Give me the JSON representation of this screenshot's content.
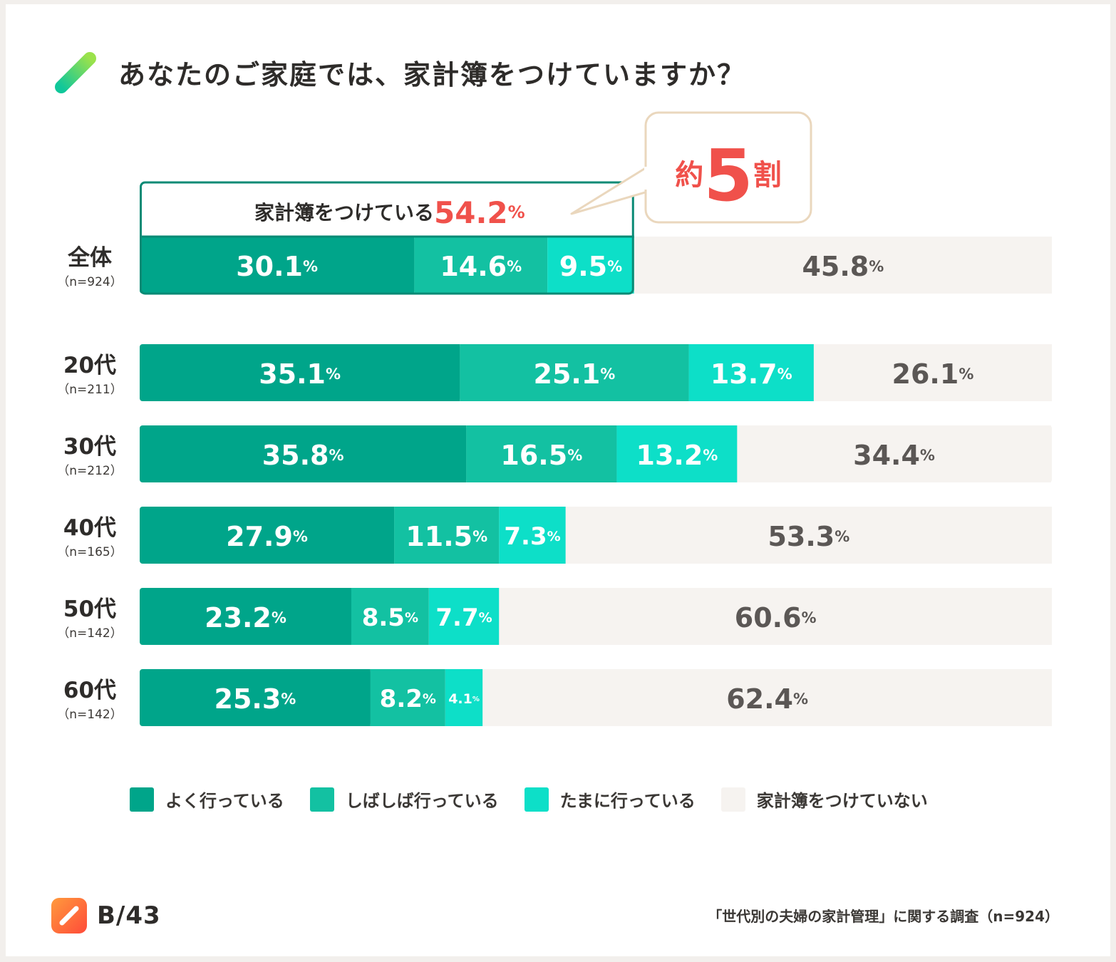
{
  "title": "あなたのご家庭では、家計簿をつけていますか？",
  "colors": {
    "often": "#00a58a",
    "sometimes": "#13c1a2",
    "occasionally": "#0ddfc8",
    "none": "#f6f3f0",
    "accent_red": "#f0514b",
    "highlight_border": "#098a75",
    "callout_border": "#ead7bd"
  },
  "chart_data": {
    "type": "bar",
    "orientation": "horizontal",
    "stacked": true,
    "unit": "%",
    "categories": [
      {
        "label": "全体",
        "n": "（n=924）"
      },
      {
        "label": "20代",
        "n": "（n=211）"
      },
      {
        "label": "30代",
        "n": "（n=212）"
      },
      {
        "label": "40代",
        "n": "（n=165）"
      },
      {
        "label": "50代",
        "n": "（n=142）"
      },
      {
        "label": "60代",
        "n": "（n=142）"
      }
    ],
    "series": [
      {
        "name": "よく行っている",
        "color": "#00a58a",
        "values": [
          30.1,
          35.1,
          35.8,
          27.9,
          23.2,
          25.3
        ]
      },
      {
        "name": "しばしば行っている",
        "color": "#13c1a2",
        "values": [
          14.6,
          25.1,
          16.5,
          11.5,
          8.5,
          8.2
        ]
      },
      {
        "name": "たまに行っている",
        "color": "#0ddfc8",
        "values": [
          9.5,
          13.7,
          13.2,
          7.3,
          7.7,
          4.1
        ]
      },
      {
        "name": "家計簿をつけていない",
        "color": "#f6f3f0",
        "values": [
          45.8,
          26.1,
          34.4,
          53.3,
          60.6,
          62.4
        ]
      }
    ],
    "xlim": [
      0,
      100
    ],
    "legend_position": "bottom",
    "grid": false,
    "highlight": {
      "text": "家計簿をつけている",
      "value": "54.2",
      "unit": "%"
    },
    "callout": {
      "prefix": "約",
      "number": "5",
      "suffix": "割"
    }
  },
  "footer": {
    "logo": "B/43",
    "source": "「世代別の夫婦の家計管理」に関する調査（n=924）"
  }
}
